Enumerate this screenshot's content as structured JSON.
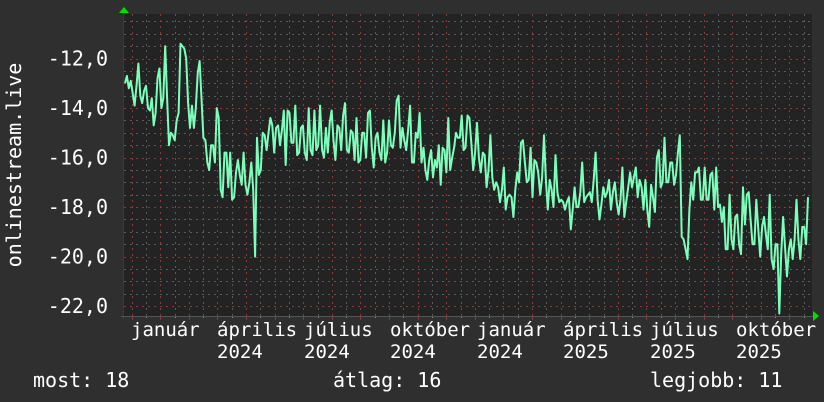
{
  "chart_data": {
    "type": "line",
    "title": "",
    "ylabel": "onlinestream.live",
    "xlabel": "",
    "ylim": [
      -22.4,
      -10.2
    ],
    "y_ticks": [
      "-12,0",
      "-14,0",
      "-16,0",
      "-18,0",
      "-20,0",
      "-22,0"
    ],
    "y_tick_values": [
      -12,
      -14,
      -16,
      -18,
      -20,
      -22
    ],
    "x_tick_labels": [
      "január",
      "április",
      "2024",
      "július",
      "2024",
      "október",
      "2024",
      "január",
      "2024",
      "április",
      "2025",
      "július",
      "2025",
      "október",
      "2025"
    ],
    "grid": true,
    "line_color": "#7dffbc",
    "plot_background": "#232323",
    "background": "#2f2f2f",
    "major_grid_color": "#8a3a3a",
    "minor_grid_color": "#5a5a5a",
    "arrow_color": "#00e000",
    "series": [
      {
        "values": [
          -13.0,
          -12.7,
          -13.2,
          -12.9,
          -13.4,
          -13.9,
          -13.1,
          -12.2,
          -13.5,
          -13.8,
          -13.3,
          -13.1,
          -14.0,
          -14.1,
          -13.6,
          -14.7,
          -14.2,
          -12.8,
          -12.4,
          -14.0,
          -13.6,
          -11.5,
          -13.6,
          -15.5,
          -15.0,
          -15.1,
          -15.3,
          -14.5,
          -14.2,
          -11.4,
          -11.5,
          -11.6,
          -12.0,
          -13.8,
          -14.8,
          -13.9,
          -14.8,
          -14.0,
          -12.6,
          -12.1,
          -13.6,
          -15.2,
          -15.3,
          -16.2,
          -16.5,
          -15.5,
          -15.5,
          -16.2,
          -14.0,
          -14.4,
          -17.3,
          -17.6,
          -15.8,
          -15.8,
          -17.2,
          -15.8,
          -17.7,
          -17.6,
          -16.6,
          -16.1,
          -16.7,
          -17.1,
          -15.8,
          -17.1,
          -17.5,
          -17.0,
          -16.2,
          -17.3,
          -20.0,
          -15.2,
          -16.7,
          -16.5,
          -15.0,
          -15.1,
          -15.7,
          -15.0,
          -14.4,
          -14.7,
          -15.8,
          -14.8,
          -14.7,
          -15.5,
          -14.9,
          -14.1,
          -16.3,
          -14.1,
          -14.2,
          -15.4,
          -15.4,
          -13.9,
          -15.9,
          -15.8,
          -14.8,
          -14.7,
          -15.8,
          -16.1,
          -14.0,
          -15.7,
          -15.9,
          -14.1,
          -15.7,
          -15.5,
          -13.9,
          -15.7,
          -16.0,
          -14.8,
          -15.8,
          -14.6,
          -14.1,
          -15.3,
          -16.1,
          -14.7,
          -14.8,
          -15.7,
          -14.3,
          -13.8,
          -15.7,
          -15.8,
          -14.9,
          -15.0,
          -16.1,
          -14.4,
          -16.2,
          -16.1,
          -15.0,
          -15.0,
          -16.0,
          -14.2,
          -14.1,
          -15.6,
          -16.4,
          -15.2,
          -15.0,
          -15.8,
          -16.1,
          -14.5,
          -16.2,
          -15.8,
          -14.5,
          -15.5,
          -15.6,
          -15.0,
          -13.7,
          -13.5,
          -15.6,
          -14.8,
          -15.3,
          -15.7,
          -14.9,
          -13.9,
          -16.2,
          -16.2,
          -15.0,
          -15.2,
          -14.2,
          -16.2,
          -15.6,
          -16.5,
          -16.9,
          -16.1,
          -15.7,
          -16.8,
          -16.1,
          -16.4,
          -15.5,
          -17.1,
          -15.6,
          -15.7,
          -16.6,
          -14.4,
          -16.5,
          -16.0,
          -15.6,
          -15.0,
          -15.2,
          -15.2,
          -14.3,
          -15.7,
          -15.6,
          -14.3,
          -14.4,
          -15.4,
          -16.5,
          -15.8,
          -14.6,
          -16.0,
          -16.6,
          -15.8,
          -15.9,
          -17.2,
          -16.5,
          -15.1,
          -16.8,
          -17.3,
          -17.0,
          -17.2,
          -17.8,
          -17.3,
          -16.4,
          -18.1,
          -17.6,
          -17.5,
          -17.6,
          -18.4,
          -17.3,
          -16.6,
          -17.0,
          -15.4,
          -15.3,
          -16.2,
          -17.0,
          -16.9,
          -15.6,
          -17.6,
          -16.1,
          -16.2,
          -16.6,
          -17.5,
          -16.8,
          -15.1,
          -16.9,
          -18.1,
          -16.9,
          -17.3,
          -18.0,
          -15.9,
          -17.4,
          -17.8,
          -17.7,
          -17.8,
          -18.1,
          -17.8,
          -17.6,
          -18.9,
          -18.1,
          -17.2,
          -18.0,
          -18.0,
          -17.4,
          -16.2,
          -17.8,
          -17.6,
          -17.5,
          -17.4,
          -17.8,
          -16.9,
          -15.8,
          -17.7,
          -18.5,
          -17.9,
          -17.2,
          -17.6,
          -17.4,
          -16.9,
          -18.1,
          -17.4,
          -17.0,
          -17.8,
          -18.3,
          -17.7,
          -16.4,
          -18.4,
          -17.8,
          -17.2,
          -16.6,
          -17.2,
          -16.8,
          -16.4,
          -17.6,
          -16.9,
          -17.2,
          -18.1,
          -16.9,
          -18.1,
          -18.8,
          -17.1,
          -17.6,
          -18.2,
          -16.0,
          -15.7,
          -17.2,
          -17.0,
          -15.2,
          -17.0,
          -17.0,
          -16.2,
          -16.2,
          -17.1,
          -16.7,
          -15.8,
          -15.1,
          -19.2,
          -19.3,
          -19.7,
          -20.1,
          -18.1,
          -17.0,
          -17.7,
          -16.6,
          -16.6,
          -16.4,
          -17.7,
          -17.7,
          -16.4,
          -17.7,
          -17.7,
          -16.7,
          -16.6,
          -18.1,
          -16.4,
          -18.0,
          -17.9,
          -18.6,
          -18.0,
          -19.7,
          -19.7,
          -17.5,
          -19.3,
          -19.7,
          -18.4,
          -18.3,
          -19.5,
          -19.9,
          -17.2,
          -18.7,
          -17.5,
          -17.4,
          -18.5,
          -19.5,
          -19.5,
          -17.7,
          -18.9,
          -20.0,
          -18.8,
          -18.4,
          -19.1,
          -19.7,
          -17.5,
          -20.1,
          -20.5,
          -19.5,
          -19.5,
          -22.3,
          -19.9,
          -18.4,
          -19.6,
          -20.8,
          -19.7,
          -19.3,
          -20.1,
          -19.3,
          -17.7,
          -19.3,
          -20.1,
          -18.8,
          -18.8,
          -19.5,
          -17.6
        ]
      }
    ]
  },
  "legend": {
    "current": "most: 18",
    "average": "átlag: 16",
    "best": "legjobb: 11"
  }
}
